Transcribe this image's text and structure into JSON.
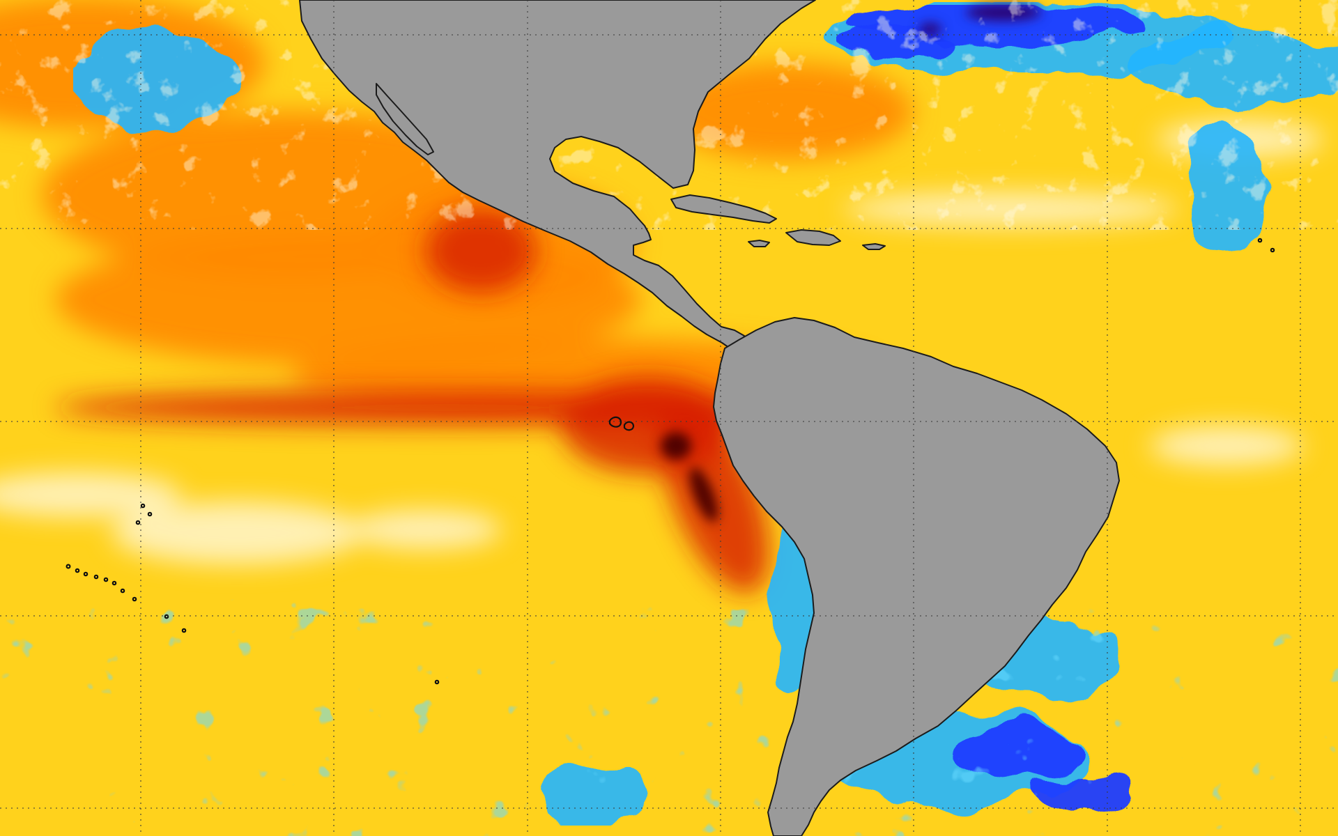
{
  "map": {
    "colors": {
      "ocean_base": "#ffd21c",
      "warm_orange": "#ff8a00",
      "hot_red": "#d81e00",
      "extreme_dark_red": "#4a0000",
      "neutral_white": "#fff3c4",
      "cool_cyan": "#23b5ff",
      "cold_blue": "#1a3cff",
      "very_cold_purple": "#2a006d",
      "land": "#9a9a9a",
      "coastline": "#1b1b1b",
      "graticule": "#3b3b3b"
    },
    "features": {
      "land_masses": [
        "north-america",
        "central-america",
        "south-america",
        "cuba",
        "hispaniola",
        "jamaica",
        "puerto-rico",
        "galapagos-islands",
        "baja-california"
      ],
      "overlays": [
        "graticule-grid",
        "sea-surface-temperature-anomaly-field"
      ]
    }
  }
}
